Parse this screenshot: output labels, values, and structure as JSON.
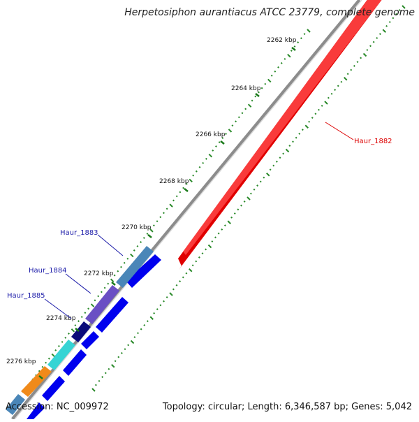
{
  "title": "Herpetosiphon aurantiacus ATCC 23779, complete genome",
  "footer": {
    "accession": "Accession: NC_009972",
    "summary": "Topology: circular; Length: 6,346,587 bp; Genes: 5,042"
  },
  "ticks": [
    "2262 kbp",
    "2264 kbp",
    "2266 kbp",
    "2268 kbp",
    "2270 kbp",
    "2272 kbp",
    "2274 kbp",
    "2276 kbp"
  ],
  "gene_labels": [
    {
      "name": "Haur_1882",
      "color": "#dd0000"
    },
    {
      "name": "Haur_1883",
      "color": "#1a1aa8"
    },
    {
      "name": "Haur_1884",
      "color": "#1a1aa8"
    },
    {
      "name": "Haur_1885",
      "color": "#1a1aa8"
    }
  ],
  "colors": {
    "backbone": "#8c8c8c",
    "forward_gene": "#e00000",
    "reverse_cds": "#0000ee",
    "tick_marks": "#1a7a1a",
    "gc_dots": "#2a8a2a"
  }
}
